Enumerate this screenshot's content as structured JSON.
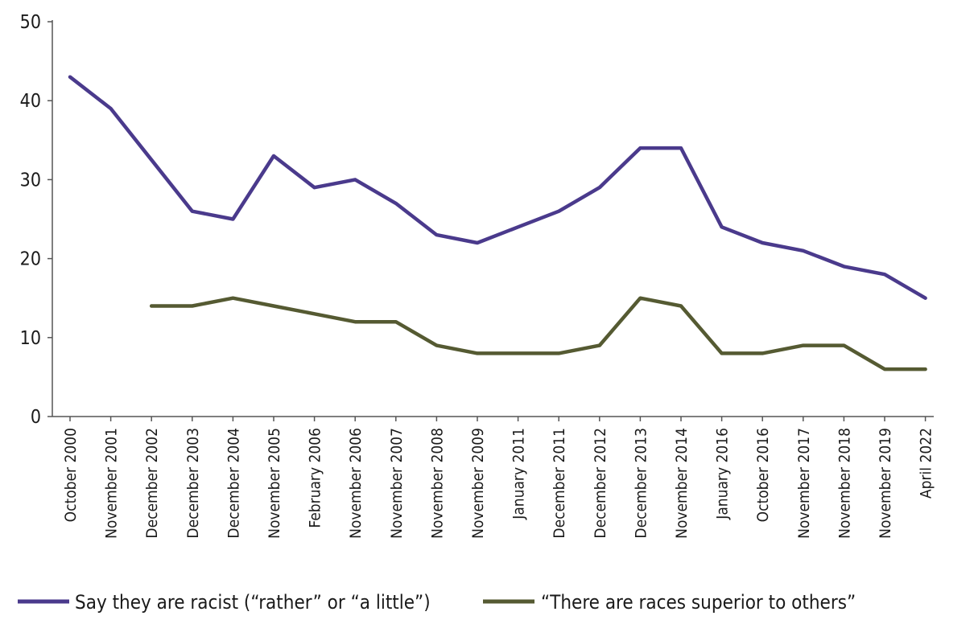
{
  "chart_data": {
    "type": "line",
    "title": "",
    "xlabel": "",
    "ylabel": "",
    "ylim": [
      0,
      50
    ],
    "yticks": [
      0,
      10,
      20,
      30,
      40,
      50
    ],
    "grid": false,
    "legend_position": "bottom",
    "categories": [
      "October 2000",
      "November 2001",
      "December 2002",
      "December 2003",
      "December 2004",
      "November 2005",
      "February 2006",
      "November 2006",
      "November 2007",
      "November 2008",
      "November 2009",
      "January 2011",
      "December 2011",
      "December 2012",
      "December 2013",
      "November 2014",
      "January 2016",
      "October 2016",
      "November 2017",
      "November 2018",
      "November 2019",
      "April 2022"
    ],
    "series": [
      {
        "name": "Say they are racist (“rather” or “a little”)",
        "color": "#4a3a8c",
        "values": [
          43,
          39,
          32.5,
          26,
          25,
          33,
          29,
          30,
          27,
          23,
          22,
          24,
          26,
          29,
          34,
          34,
          24,
          22,
          21,
          19,
          18,
          15
        ]
      },
      {
        "name": "“There are races superior to others”",
        "color": "#555a32",
        "values": [
          null,
          null,
          14,
          14,
          15,
          14,
          13,
          12,
          12,
          9,
          8,
          8,
          8,
          9,
          15,
          14,
          8,
          8,
          9,
          9,
          6,
          6
        ]
      }
    ]
  }
}
